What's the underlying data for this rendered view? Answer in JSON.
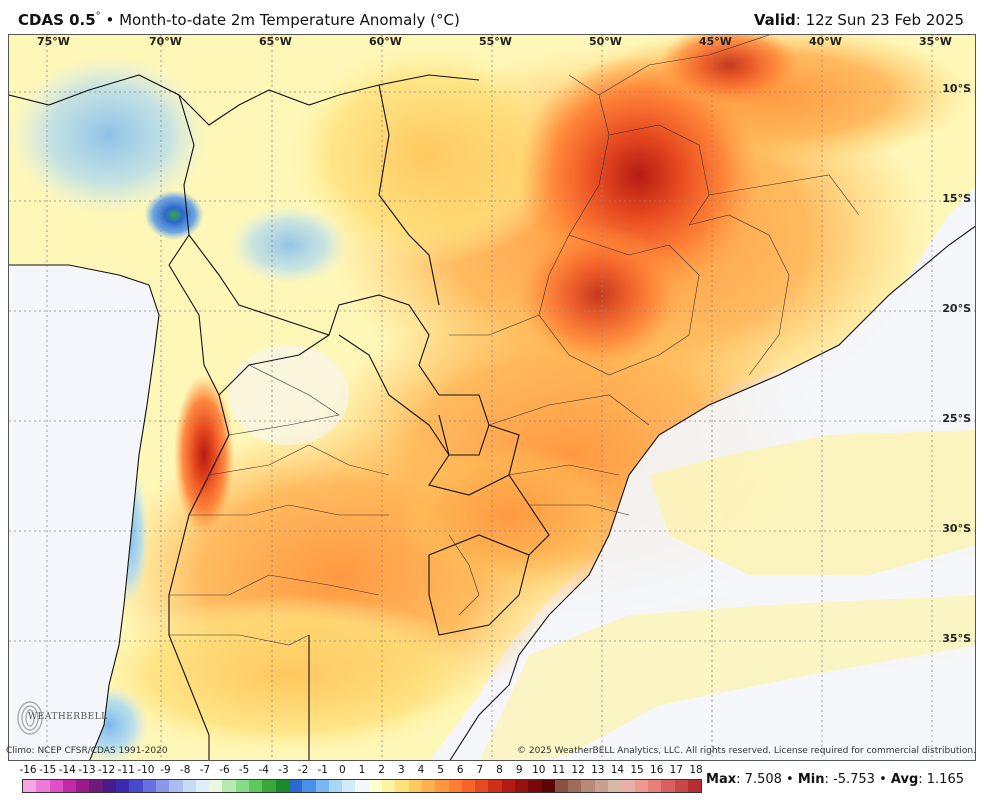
{
  "header": {
    "model": "CDAS 0.5",
    "degree_mark": "°",
    "bullet": "•",
    "product": "Month-to-date 2m Temperature Anomaly (°C)",
    "valid_label": "Valid",
    "valid_time": ": 12z Sun 23 Feb 2025"
  },
  "map": {
    "lon_labels": [
      "75°W",
      "70°W",
      "65°W",
      "60°W",
      "55°W",
      "50°W",
      "45°W",
      "40°W",
      "35°W"
    ],
    "lat_labels": [
      "10°S",
      "15°S",
      "20°S",
      "25°S",
      "30°S",
      "35°S"
    ],
    "ocean_color": "#f4f6fb",
    "land_outline_color": "#111111"
  },
  "footer": {
    "climo": "Climo: NCEP CFSR/CDAS 1991-2020",
    "copyright": "© 2025 WeatherBELL Analytics, LLC. All rights reserved. License required for commercial distribution.",
    "logo_text": "WEATHERBELL"
  },
  "legend": {
    "ticks": [
      "-16",
      "-15",
      "-14",
      "-13",
      "-12",
      "-11",
      "-10",
      "-9",
      "-8",
      "-7",
      "-6",
      "-5",
      "-4",
      "-3",
      "-2",
      "-1",
      "0",
      "1",
      "2",
      "3",
      "4",
      "5",
      "6",
      "7",
      "8",
      "9",
      "10",
      "11",
      "12",
      "13",
      "14",
      "15",
      "16",
      "17",
      "18"
    ],
    "colors": [
      "#f7a6e8",
      "#ee7bd9",
      "#e04fc8",
      "#c22aa9",
      "#9c1a8c",
      "#6f1a7a",
      "#4a1a8c",
      "#3a2ab0",
      "#4a4ad0",
      "#6a70e0",
      "#8a98ec",
      "#aabcf2",
      "#c8dcf6",
      "#e0eefa",
      "#e8f7e0",
      "#b8eab0",
      "#88dc88",
      "#5ec85e",
      "#3aa83a",
      "#1a8a2a",
      "#2a6ad0",
      "#4a90e8",
      "#7ab8f0",
      "#a8d8f6",
      "#d0ecfa",
      "#f2f8fd",
      "#ffffd0",
      "#fff2a0",
      "#ffe07a",
      "#ffc860",
      "#ffb050",
      "#ff9840",
      "#ff7e34",
      "#f8642a",
      "#e84a20",
      "#d03018",
      "#b41c12",
      "#96100c",
      "#7a0808",
      "#5c0404",
      "#8a5040",
      "#a06a58",
      "#b88878",
      "#c8a090",
      "#d8b8a8",
      "#e8b0a8",
      "#f09890",
      "#e88078",
      "#d86060",
      "#c84848",
      "#b43030"
    ]
  },
  "stats": {
    "max_label": "Max",
    "max_value": ": 7.508",
    "min_label": "Min",
    "min_value": ": -5.753",
    "avg_label": "Avg",
    "avg_value": ": 1.165",
    "sep": "•"
  }
}
